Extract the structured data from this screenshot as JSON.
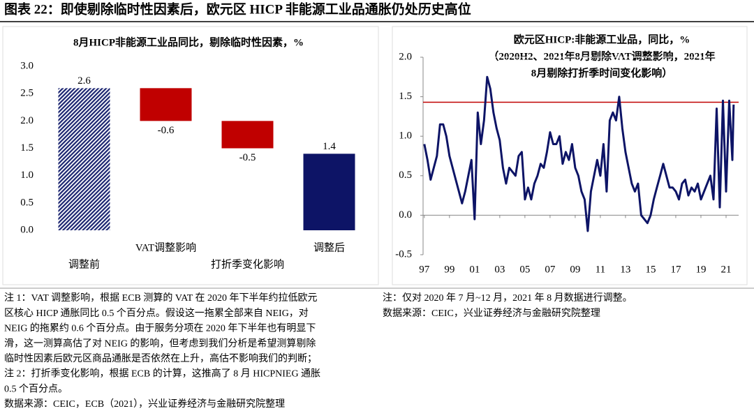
{
  "header": {
    "title": "图表 22：即使剔除临时性因素后，欧元区 HICP 非能源工业品通胀仍处历史高位"
  },
  "chart_data": [
    {
      "type": "waterfall",
      "title": "8月HICP非能源工业品同比，剔除临时性因素，%",
      "categories": [
        "调整前",
        "VAT调整影响",
        "打折季变化影响",
        "调整后"
      ],
      "values": [
        2.6,
        -0.6,
        -0.5,
        1.4
      ],
      "colors": [
        "#1a2470",
        "#c00000",
        "#c00000",
        "#0d1466"
      ],
      "hatch": [
        true,
        false,
        false,
        false
      ],
      "ylim": [
        0,
        3.0
      ],
      "yticks": [
        {
          "value": 0,
          "label": "0.0"
        },
        0.5,
        {
          "value": 1,
          "label": "1.0"
        },
        1.5,
        {
          "value": 2,
          "label": "2.0"
        },
        2.5,
        {
          "value": 3,
          "label": "3.0"
        }
      ]
    },
    {
      "type": "line",
      "title": [
        "欧元区HICP:非能源工业品，同比，%",
        "（2020H2、2021年8月剔除VAT调整影响，2021年",
        "8月剔除打折季时间变化影响）"
      ],
      "x": [
        1997,
        1997.25,
        1997.5,
        1997.75,
        1998,
        1998.25,
        1998.5,
        1998.75,
        1999,
        1999.25,
        1999.5,
        1999.75,
        2000,
        2000.25,
        2000.5,
        2000.75,
        2001,
        2001.25,
        2001.5,
        2001.75,
        2002,
        2002.25,
        2002.5,
        2002.75,
        2003,
        2003.25,
        2003.5,
        2003.75,
        2004,
        2004.25,
        2004.5,
        2004.75,
        2005,
        2005.25,
        2005.5,
        2005.75,
        2006,
        2006.25,
        2006.5,
        2006.75,
        2007,
        2007.25,
        2007.5,
        2007.75,
        2008,
        2008.25,
        2008.5,
        2008.75,
        2009,
        2009.25,
        2009.5,
        2009.75,
        2010,
        2010.25,
        2010.5,
        2010.75,
        2011,
        2011.25,
        2011.5,
        2011.75,
        2012,
        2012.25,
        2012.5,
        2012.75,
        2013,
        2013.25,
        2013.5,
        2013.75,
        2014,
        2014.25,
        2014.5,
        2014.75,
        2015,
        2015.25,
        2015.5,
        2015.75,
        2016,
        2016.25,
        2016.5,
        2016.75,
        2017,
        2017.25,
        2017.5,
        2017.75,
        2018,
        2018.25,
        2018.5,
        2018.75,
        2019,
        2019.25,
        2019.5,
        2019.75,
        2020,
        2020.25,
        2020.5,
        2020.75,
        2021,
        2021.25,
        2021.5,
        2021.6
      ],
      "values": [
        0.9,
        0.7,
        0.45,
        0.6,
        0.75,
        1.15,
        1.15,
        1.0,
        0.75,
        0.6,
        0.45,
        0.3,
        0.15,
        0.3,
        0.5,
        0.7,
        -0.05,
        1.3,
        0.9,
        1.2,
        1.75,
        1.6,
        1.3,
        1.1,
        0.95,
        0.6,
        0.4,
        0.6,
        0.55,
        0.5,
        0.75,
        0.8,
        0.2,
        0.35,
        0.2,
        0.4,
        0.5,
        0.65,
        0.6,
        0.8,
        1.05,
        0.9,
        0.9,
        1.0,
        0.65,
        0.8,
        0.7,
        0.9,
        0.6,
        0.5,
        0.3,
        0.2,
        -0.2,
        0.3,
        0.5,
        0.7,
        0.5,
        0.9,
        0.3,
        1.2,
        1.3,
        1.2,
        1.5,
        1.1,
        0.8,
        0.6,
        0.4,
        0.3,
        0.4,
        0.0,
        -0.05,
        -0.1,
        0.0,
        0.2,
        0.35,
        0.5,
        0.65,
        0.5,
        0.35,
        0.35,
        0.3,
        0.2,
        0.4,
        0.45,
        0.25,
        0.35,
        0.3,
        0.4,
        0.2,
        0.3,
        0.4,
        0.5,
        0.2,
        1.35,
        0.1,
        1.45,
        0.3,
        1.45,
        0.7,
        1.4
      ],
      "color": "#0d1466",
      "hline": {
        "value": 1.43,
        "color": "#c00000"
      },
      "xlim": [
        1996.9,
        2022
      ],
      "xticks": [
        {
          "value": 1997,
          "label": "97"
        },
        {
          "value": 1999,
          "label": "99"
        },
        {
          "value": 2001,
          "label": "01"
        },
        {
          "value": 2003,
          "label": "03"
        },
        {
          "value": 2005,
          "label": "05"
        },
        {
          "value": 2007,
          "label": "07"
        },
        {
          "value": 2009,
          "label": "09"
        },
        {
          "value": 2011,
          "label": "11"
        },
        {
          "value": 2013,
          "label": "13"
        },
        {
          "value": 2015,
          "label": "15"
        },
        {
          "value": 2017,
          "label": "17"
        },
        {
          "value": 2019,
          "label": "19"
        },
        {
          "value": 2021,
          "label": "21"
        }
      ],
      "ylim": [
        -0.5,
        2.0
      ],
      "yticks": [
        -0.5,
        {
          "value": 0,
          "label": "0.0"
        },
        0.5,
        {
          "value": 1,
          "label": "1.0"
        },
        1.5,
        {
          "value": 2,
          "label": "2.0"
        }
      ]
    }
  ],
  "notes": {
    "left": [
      "注 1：VAT 调整影响，根据 ECB 测算的 VAT 在 2020 年下半年约拉低欧元",
      "区核心 HICP 通胀同比 0.5 个百分点。假设这一拖累全部来自 NEIG，对",
      "NEIG 的拖累约 0.6 个百分点。由于服务分项在 2020 年下半年也有明显下",
      "滑，这一测算高估了对 NEIG 的影响，但考虑到我们分析是希望测算剔除",
      "临时性因素后欧元区商品通胀是否依然在上升，高估不影响我们的判断；",
      "注 2：打折季变化影响，根据 ECB 的计算，这推高了 8 月 HICPNIEG 通胀",
      "0.5 个百分点。",
      "数据来源：CEIC，ECB（2021），兴业证券经济与金融研究院整理"
    ],
    "right": [
      "注：仅对 2020 年 7 月~12 月，2021 年 8 月数据进行调整。",
      "数据来源：CEIC，兴业证券经济与金融研究院整理"
    ]
  }
}
